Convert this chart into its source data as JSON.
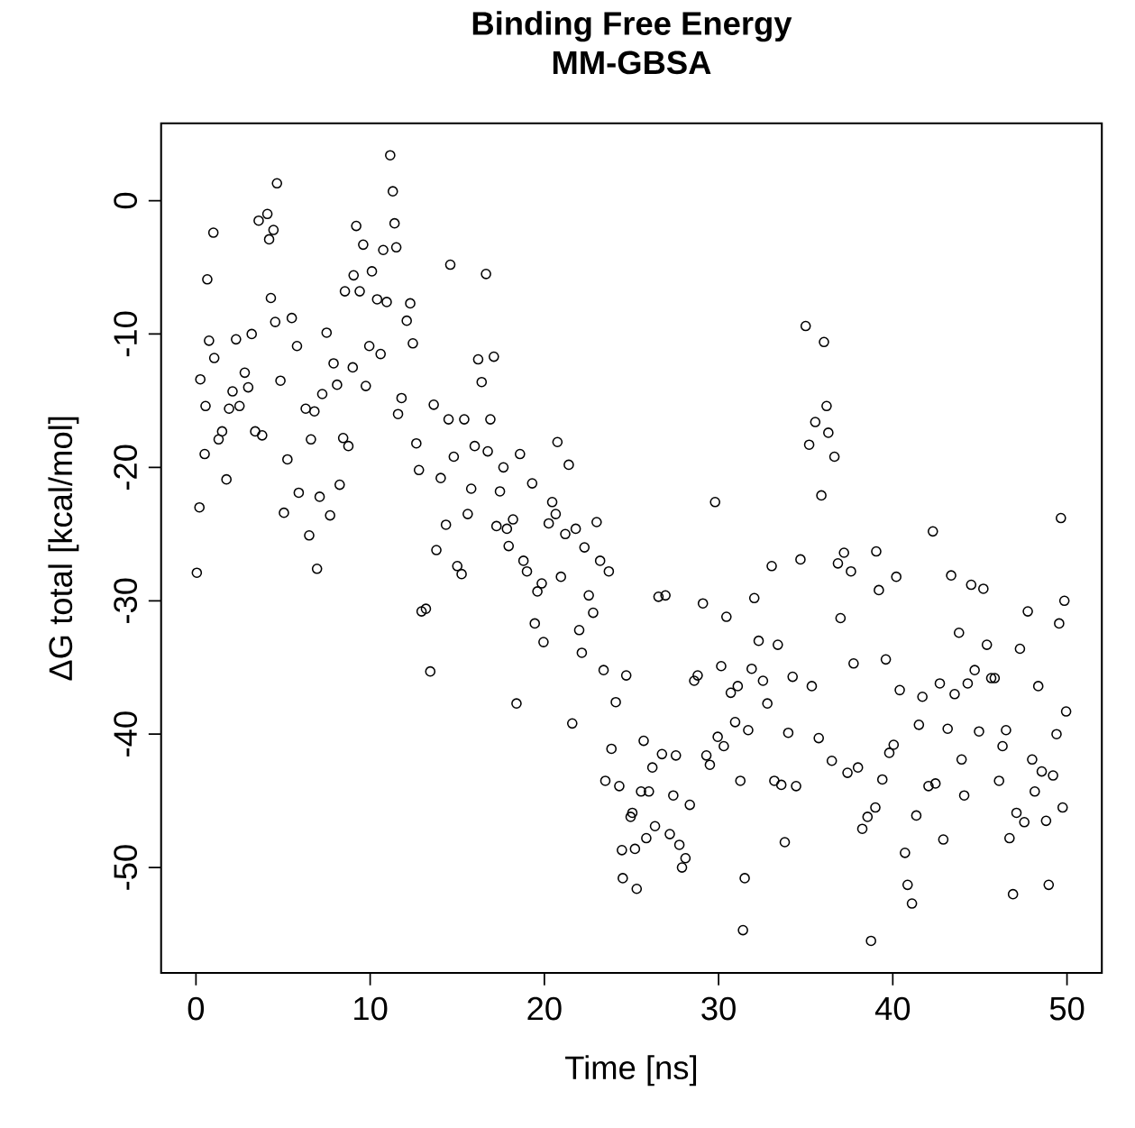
{
  "chart_data": {
    "type": "scatter",
    "title": "**Binding Free Energy**",
    "subtitle": "**MM-GBSA**",
    "xlabel": "Time [ns]",
    "ylabel": "ΔG total [kcal/mol]",
    "xlim": [
      -2,
      52
    ],
    "ylim": [
      -57.9,
      5.8
    ],
    "xticks": [
      0,
      10,
      20,
      30,
      40,
      50
    ],
    "yticks": [
      -50,
      -40,
      -30,
      -20,
      -10,
      0
    ],
    "grid": false,
    "marker": "circle",
    "series": [
      {
        "color": "#000000",
        "x": [
          0.05,
          0.2,
          0.25,
          0.5,
          0.55,
          0.65,
          0.75,
          1.0,
          1.05,
          1.3,
          1.5,
          1.75,
          1.9,
          2.1,
          2.3,
          2.5,
          2.8,
          3.0,
          3.2,
          3.4,
          3.6,
          3.8,
          4.1,
          4.2,
          4.3,
          4.45,
          4.55,
          4.65,
          4.85,
          5.05,
          5.25,
          5.5,
          5.8,
          5.9,
          6.3,
          6.5,
          6.6,
          6.8,
          6.95,
          7.1,
          7.25,
          7.5,
          7.7,
          7.9,
          8.1,
          8.25,
          8.45,
          8.55,
          8.75,
          9.0,
          9.05,
          9.2,
          9.4,
          9.6,
          9.75,
          9.95,
          10.1,
          10.4,
          10.6,
          10.75,
          10.95,
          11.15,
          11.3,
          11.4,
          11.5,
          11.6,
          11.8,
          12.1,
          12.3,
          12.45,
          12.65,
          12.8,
          12.95,
          13.2,
          13.45,
          13.65,
          13.8,
          14.05,
          14.35,
          14.5,
          14.6,
          14.8,
          15.0,
          15.25,
          15.4,
          15.6,
          15.8,
          16.0,
          16.2,
          16.4,
          16.65,
          16.75,
          16.9,
          17.1,
          17.25,
          17.45,
          17.65,
          17.85,
          17.95,
          18.2,
          18.4,
          18.6,
          18.8,
          19.0,
          19.3,
          19.45,
          19.6,
          19.85,
          19.95,
          20.25,
          20.45,
          20.65,
          20.75,
          20.95,
          21.2,
          21.4,
          21.6,
          21.8,
          22.0,
          22.15,
          22.3,
          22.55,
          22.8,
          23.0,
          23.2,
          23.4,
          23.5,
          23.7,
          23.85,
          24.1,
          24.3,
          24.45,
          24.5,
          24.7,
          24.95,
          25.05,
          25.2,
          25.3,
          25.55,
          25.7,
          25.85,
          26.0,
          26.2,
          26.35,
          26.55,
          26.75,
          26.95,
          27.2,
          27.4,
          27.55,
          27.75,
          27.9,
          28.1,
          28.35,
          28.6,
          28.8,
          29.1,
          29.3,
          29.5,
          29.8,
          29.95,
          30.15,
          30.3,
          30.45,
          30.7,
          30.95,
          31.1,
          31.25,
          31.4,
          31.5,
          31.7,
          31.9,
          32.05,
          32.3,
          32.55,
          32.8,
          33.05,
          33.2,
          33.4,
          33.6,
          33.8,
          34.0,
          34.25,
          34.45,
          34.7,
          35.0,
          35.2,
          35.35,
          35.55,
          35.75,
          35.9,
          36.05,
          36.2,
          36.3,
          36.5,
          36.65,
          36.85,
          37.0,
          37.2,
          37.4,
          37.6,
          37.75,
          38.0,
          38.25,
          38.55,
          38.75,
          39.0,
          39.05,
          39.2,
          39.4,
          39.6,
          39.8,
          40.05,
          40.2,
          40.4,
          40.7,
          40.85,
          41.1,
          41.35,
          41.5,
          41.7,
          42.05,
          42.3,
          42.45,
          42.7,
          42.9,
          43.15,
          43.35,
          43.55,
          43.8,
          43.95,
          44.1,
          44.3,
          44.5,
          44.7,
          44.95,
          45.2,
          45.4,
          45.65,
          45.85,
          46.1,
          46.3,
          46.5,
          46.7,
          46.9,
          47.1,
          47.3,
          47.55,
          47.75,
          48.0,
          48.15,
          48.35,
          48.55,
          48.8,
          48.95,
          49.2,
          49.4,
          49.55,
          49.65,
          49.75,
          49.85,
          49.95
        ],
        "values": [
          -27.9,
          -23.0,
          -13.4,
          -19.0,
          -15.4,
          -5.9,
          -10.5,
          -2.4,
          -11.8,
          -17.9,
          -17.3,
          -20.9,
          -15.6,
          -14.3,
          -10.4,
          -15.4,
          -12.9,
          -14.0,
          -10.0,
          -17.3,
          -1.5,
          -17.6,
          -1.0,
          -2.9,
          -7.3,
          -2.2,
          -9.1,
          1.3,
          -13.5,
          -23.4,
          -19.4,
          -8.8,
          -10.9,
          -21.9,
          -15.6,
          -25.1,
          -17.9,
          -15.8,
          -27.6,
          -22.2,
          -14.5,
          -9.9,
          -23.6,
          -12.2,
          -13.8,
          -21.3,
          -17.8,
          -6.8,
          -18.4,
          -12.5,
          -5.6,
          -1.9,
          -6.8,
          -3.3,
          -13.9,
          -10.9,
          -5.3,
          -7.4,
          -11.5,
          -3.7,
          -7.6,
          3.4,
          0.7,
          -1.7,
          -3.5,
          -16.0,
          -14.8,
          -9.0,
          -7.7,
          -10.7,
          -18.2,
          -20.2,
          -30.8,
          -30.6,
          -35.3,
          -15.3,
          -26.2,
          -20.8,
          -24.3,
          -16.4,
          -4.8,
          -19.2,
          -27.4,
          -28.0,
          -16.4,
          -23.5,
          -21.6,
          -18.4,
          -11.9,
          -13.6,
          -5.5,
          -18.8,
          -16.4,
          -11.7,
          -24.4,
          -21.8,
          -20.0,
          -24.6,
          -25.9,
          -23.9,
          -37.7,
          -19.0,
          -27.0,
          -27.8,
          -21.2,
          -31.7,
          -29.3,
          -28.7,
          -33.1,
          -24.2,
          -22.6,
          -23.5,
          -18.1,
          -28.2,
          -25.0,
          -19.8,
          -39.2,
          -24.6,
          -32.2,
          -33.9,
          -26.0,
          -29.6,
          -30.9,
          -24.1,
          -27.0,
          -35.2,
          -43.5,
          -27.8,
          -41.1,
          -37.6,
          -43.9,
          -48.7,
          -50.8,
          -35.6,
          -46.2,
          -45.9,
          -48.6,
          -51.6,
          -44.3,
          -40.5,
          -47.8,
          -44.3,
          -42.5,
          -46.9,
          -29.7,
          -41.5,
          -29.6,
          -47.5,
          -44.6,
          -41.6,
          -48.3,
          -50.0,
          -49.3,
          -45.3,
          -36.0,
          -35.6,
          -30.2,
          -41.6,
          -42.3,
          -22.6,
          -40.2,
          -34.9,
          -40.9,
          -31.2,
          -36.9,
          -39.1,
          -36.4,
          -43.5,
          -54.7,
          -50.8,
          -39.7,
          -35.1,
          -29.8,
          -33.0,
          -36.0,
          -37.7,
          -27.4,
          -43.5,
          -33.3,
          -43.8,
          -48.1,
          -39.9,
          -35.7,
          -43.9,
          -26.9,
          -9.4,
          -18.3,
          -36.4,
          -16.6,
          -40.3,
          -22.1,
          -10.6,
          -15.4,
          -17.4,
          -42.0,
          -19.2,
          -27.2,
          -31.3,
          -26.4,
          -42.9,
          -27.8,
          -34.7,
          -42.5,
          -47.1,
          -46.2,
          -55.5,
          -45.5,
          -26.3,
          -29.2,
          -43.4,
          -34.4,
          -41.4,
          -40.8,
          -28.2,
          -36.7,
          -48.9,
          -51.3,
          -52.7,
          -46.1,
          -39.3,
          -37.2,
          -43.9,
          -24.8,
          -43.7,
          -36.2,
          -47.9,
          -39.6,
          -28.1,
          -37.0,
          -32.4,
          -41.9,
          -44.6,
          -36.2,
          -28.8,
          -35.2,
          -39.8,
          -29.1,
          -33.3,
          -35.8,
          -35.8,
          -43.5,
          -40.9,
          -39.7,
          -47.8,
          -52.0,
          -45.9,
          -33.6,
          -46.6,
          -30.8,
          -41.9,
          -44.3,
          -36.4,
          -42.8,
          -46.5,
          -51.3,
          -43.1,
          -40.0,
          -31.7,
          -23.8,
          -45.5,
          -30.0,
          -38.3
        ]
      }
    ]
  }
}
